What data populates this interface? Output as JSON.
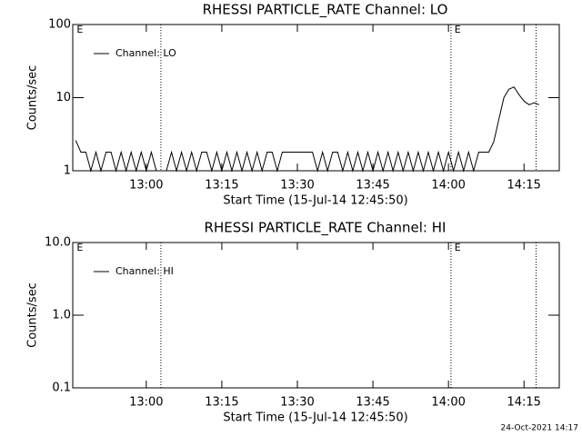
{
  "chart_data": [
    {
      "type": "line",
      "title": "RHESSI PARTICLE_RATE Channel: LO",
      "xlabel": "Start Time (15-Jul-14 12:45:50)",
      "ylabel": "Counts/sec",
      "log_y": true,
      "xlim": [
        765.4,
        862
      ],
      "ylim": [
        1,
        100
      ],
      "xticks": [
        {
          "value": 780,
          "label": "13:00"
        },
        {
          "value": 795,
          "label": "13:15"
        },
        {
          "value": 810,
          "label": "13:30"
        },
        {
          "value": 825,
          "label": "13:45"
        },
        {
          "value": 840,
          "label": "14:00"
        },
        {
          "value": 855,
          "label": "14:15"
        }
      ],
      "yticks": [
        1,
        10,
        100
      ],
      "vlines": [
        782.9,
        840.5,
        857.4
      ],
      "annotations": [
        {
          "label": "E",
          "x": 766.2
        },
        {
          "label": "E",
          "x": 841.2
        }
      ],
      "legend": "upper left",
      "series": [
        {
          "name": "Channel: LO",
          "color": "#000000",
          "x": [
            766,
            767,
            768,
            769,
            770,
            771,
            772,
            773,
            774,
            775,
            776,
            777,
            778,
            779,
            780,
            781,
            782,
            783,
            784,
            785,
            786,
            787,
            788,
            789,
            790,
            791,
            792,
            793,
            794,
            795,
            796,
            797,
            798,
            799,
            800,
            801,
            802,
            803,
            804,
            805,
            806,
            807,
            808,
            809,
            810,
            811,
            812,
            813,
            814,
            815,
            816,
            817,
            818,
            819,
            820,
            821,
            822,
            823,
            824,
            825,
            826,
            827,
            828,
            829,
            830,
            831,
            832,
            833,
            834,
            835,
            836,
            837,
            838,
            839,
            840,
            841,
            842,
            843,
            844,
            845,
            846,
            847,
            848,
            849,
            850,
            851,
            852,
            853,
            854,
            855,
            856,
            857,
            858
          ],
          "values": [
            2.6,
            1.8,
            1.8,
            1,
            1.8,
            1,
            1.8,
            1.8,
            1,
            1.8,
            1,
            1.8,
            1,
            1.8,
            1,
            1.8,
            1,
            1,
            1,
            1.8,
            1,
            1.8,
            1,
            1.8,
            1,
            1.8,
            1.8,
            1,
            1.8,
            1,
            1.8,
            1,
            1.8,
            1,
            1.8,
            1,
            1.8,
            1,
            1.8,
            1.8,
            1,
            1.8,
            1.8,
            1.8,
            1.8,
            1.8,
            1.8,
            1.8,
            1,
            1.8,
            1,
            1.8,
            1.8,
            1,
            1.8,
            1,
            1.8,
            1,
            1.8,
            1,
            1.8,
            1,
            1.8,
            1,
            1.8,
            1,
            1.8,
            1,
            1.8,
            1,
            1.8,
            1,
            1.8,
            1,
            1.8,
            1,
            1.8,
            1,
            1.8,
            1,
            1.8,
            1.8,
            1.8,
            2.5,
            5,
            10,
            13,
            14,
            11,
            9,
            8,
            8.5,
            8
          ]
        }
      ]
    },
    {
      "type": "line",
      "title": "RHESSI PARTICLE_RATE Channel: HI",
      "xlabel": "Start Time (15-Jul-14 12:45:50)",
      "ylabel": "Counts/sec",
      "log_y": true,
      "xlim": [
        765.4,
        862
      ],
      "ylim": [
        0.1,
        10
      ],
      "xticks": [
        {
          "value": 780,
          "label": "13:00"
        },
        {
          "value": 795,
          "label": "13:15"
        },
        {
          "value": 810,
          "label": "13:30"
        },
        {
          "value": 825,
          "label": "13:45"
        },
        {
          "value": 840,
          "label": "14:00"
        },
        {
          "value": 855,
          "label": "14:15"
        }
      ],
      "yticks": [
        0.1,
        {
          "value": 1,
          "label": "1.0"
        },
        {
          "value": 10,
          "label": "10.0"
        }
      ],
      "vlines": [
        782.9,
        840.5,
        857.4
      ],
      "annotations": [
        {
          "label": "E",
          "x": 766.2
        },
        {
          "label": "E",
          "x": 841.2
        }
      ],
      "legend": "upper left",
      "series": [
        {
          "name": "Channel: HI",
          "color": "#000000",
          "x": [],
          "values": []
        }
      ]
    }
  ],
  "footer": "24-Oct-2021 14:17"
}
